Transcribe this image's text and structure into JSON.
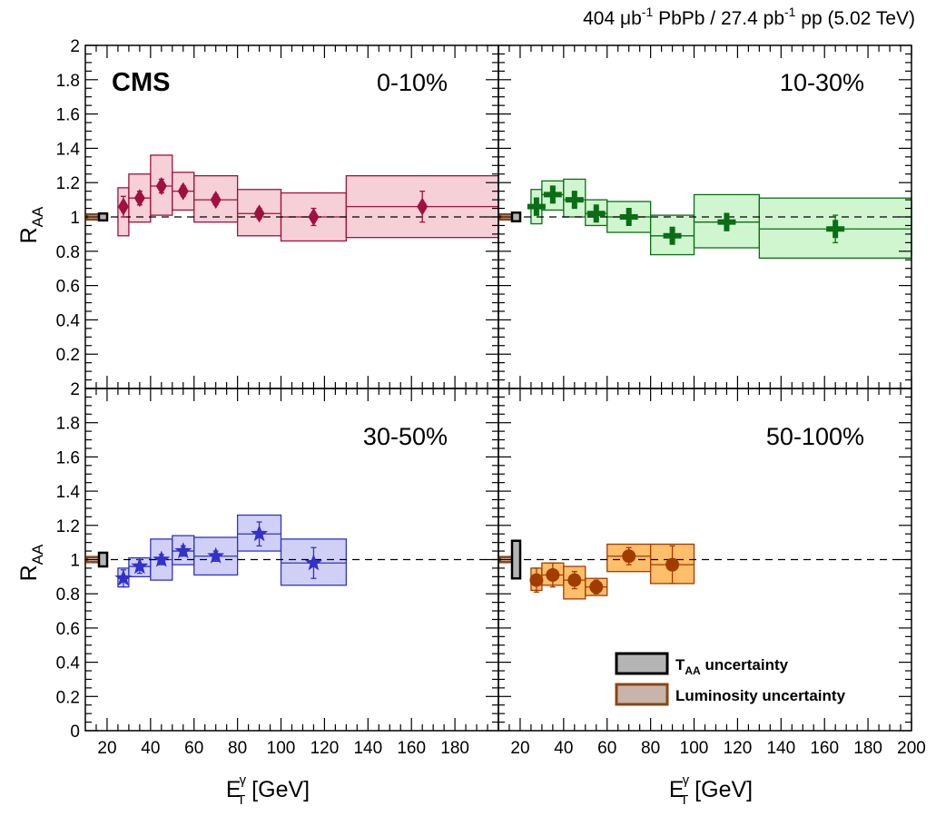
{
  "header": {
    "lumi_value": "404",
    "lumi_unit_prefix": "μb",
    "lumi_exp": "-1",
    "lumi_mid": " PbPb / 27.4 pb",
    "lumi_exp2": "-1",
    "lumi_tail": " pp (5.02 TeV)"
  },
  "experiment_label": "CMS",
  "axes": {
    "y_label_main": "R",
    "y_label_sub": "AA",
    "x_label_main": "E",
    "x_label_sub": "T",
    "x_label_sup": "γ",
    "x_label_unit": " [GeV]",
    "x_ticks": [
      "20",
      "40",
      "60",
      "80",
      "100",
      "120",
      "140",
      "160",
      "180",
      "200"
    ],
    "x_ticks_left": [
      "20",
      "40",
      "60",
      "80",
      "100",
      "120",
      "140",
      "160",
      "180"
    ],
    "y_ticks_top": [
      "0.2",
      "0.4",
      "0.6",
      "0.8",
      "1",
      "1.2",
      "1.4",
      "1.6",
      "1.8",
      "2"
    ],
    "y_ticks_bottom": [
      "0",
      "0.2",
      "0.4",
      "0.6",
      "0.8",
      "1",
      "1.2",
      "1.4",
      "1.6",
      "1.8",
      "2"
    ]
  },
  "legend": {
    "taa_main": "T",
    "taa_sub": "AA",
    "taa_tail": " uncertainty",
    "lumi_label": "Luminosity uncertainty",
    "taa_color": "#b4b4b4",
    "lumi_color": "#c8b4aa"
  },
  "chart_data": [
    {
      "type": "scatter",
      "centrality": "0-10%",
      "marker": "diamond",
      "color": "#a01040",
      "fill": "#f4c8d0",
      "xlim": [
        10,
        200
      ],
      "ylim": [
        0,
        2
      ],
      "reference_line": 1,
      "taa_band": [
        0.98,
        1.02
      ],
      "lumi_band": [
        0.985,
        1.015
      ],
      "points": [
        {
          "x": 27.5,
          "y": 1.06,
          "stat": 0.06,
          "bin": [
            25,
            30
          ],
          "syst": [
            0.89,
            1.17
          ]
        },
        {
          "x": 35,
          "y": 1.11,
          "stat": 0.04,
          "bin": [
            30,
            40
          ],
          "syst": [
            0.97,
            1.25
          ]
        },
        {
          "x": 45,
          "y": 1.18,
          "stat": 0.04,
          "bin": [
            40,
            50
          ],
          "syst": [
            1.01,
            1.36
          ]
        },
        {
          "x": 55,
          "y": 1.15,
          "stat": 0.03,
          "bin": [
            50,
            60
          ],
          "syst": [
            1.04,
            1.26
          ]
        },
        {
          "x": 70,
          "y": 1.1,
          "stat": 0.03,
          "bin": [
            60,
            80
          ],
          "syst": [
            0.97,
            1.24
          ]
        },
        {
          "x": 90,
          "y": 1.02,
          "stat": 0.03,
          "bin": [
            80,
            100
          ],
          "syst": [
            0.89,
            1.16
          ]
        },
        {
          "x": 115,
          "y": 1.0,
          "stat": 0.05,
          "bin": [
            100,
            130
          ],
          "syst": [
            0.86,
            1.14
          ]
        },
        {
          "x": 165,
          "y": 1.06,
          "stat": 0.09,
          "bin": [
            130,
            200
          ],
          "syst": [
            0.88,
            1.24
          ]
        }
      ]
    },
    {
      "type": "scatter",
      "centrality": "10-30%",
      "marker": "cross",
      "color": "#0a6e14",
      "fill": "#c8f4c8",
      "xlim": [
        10,
        200
      ],
      "ylim": [
        0,
        2
      ],
      "reference_line": 1,
      "taa_band": [
        0.975,
        1.025
      ],
      "lumi_band": [
        0.985,
        1.015
      ],
      "points": [
        {
          "x": 27.5,
          "y": 1.06,
          "stat": 0.05,
          "bin": [
            25,
            30
          ],
          "syst": [
            0.96,
            1.16
          ]
        },
        {
          "x": 35,
          "y": 1.13,
          "stat": 0.04,
          "bin": [
            30,
            40
          ],
          "syst": [
            1.04,
            1.21
          ]
        },
        {
          "x": 45,
          "y": 1.1,
          "stat": 0.04,
          "bin": [
            40,
            50
          ],
          "syst": [
            1.0,
            1.22
          ]
        },
        {
          "x": 55,
          "y": 1.02,
          "stat": 0.03,
          "bin": [
            50,
            60
          ],
          "syst": [
            0.95,
            1.1
          ]
        },
        {
          "x": 70,
          "y": 1.0,
          "stat": 0.03,
          "bin": [
            60,
            80
          ],
          "syst": [
            0.91,
            1.09
          ]
        },
        {
          "x": 90,
          "y": 0.89,
          "stat": 0.03,
          "bin": [
            80,
            100
          ],
          "syst": [
            0.78,
            1.01
          ]
        },
        {
          "x": 115,
          "y": 0.97,
          "stat": 0.05,
          "bin": [
            100,
            130
          ],
          "syst": [
            0.82,
            1.13
          ]
        },
        {
          "x": 165,
          "y": 0.93,
          "stat": 0.08,
          "bin": [
            130,
            200
          ],
          "syst": [
            0.76,
            1.11
          ]
        }
      ]
    },
    {
      "type": "scatter",
      "centrality": "30-50%",
      "marker": "star",
      "color": "#3232c8",
      "fill": "#c8c8f4",
      "xlim": [
        10,
        200
      ],
      "ylim": [
        0,
        2
      ],
      "reference_line": 1,
      "taa_band": [
        0.96,
        1.04
      ],
      "lumi_band": [
        0.985,
        1.015
      ],
      "points": [
        {
          "x": 27.5,
          "y": 0.89,
          "stat": 0.05,
          "bin": [
            25,
            30
          ],
          "syst": [
            0.84,
            0.95
          ]
        },
        {
          "x": 35,
          "y": 0.96,
          "stat": 0.04,
          "bin": [
            30,
            40
          ],
          "syst": [
            0.9,
            1.01
          ]
        },
        {
          "x": 45,
          "y": 1.0,
          "stat": 0.03,
          "bin": [
            40,
            50
          ],
          "syst": [
            0.88,
            1.12
          ]
        },
        {
          "x": 55,
          "y": 1.05,
          "stat": 0.03,
          "bin": [
            50,
            60
          ],
          "syst": [
            0.97,
            1.14
          ]
        },
        {
          "x": 70,
          "y": 1.02,
          "stat": 0.03,
          "bin": [
            60,
            80
          ],
          "syst": [
            0.91,
            1.13
          ]
        },
        {
          "x": 90,
          "y": 1.15,
          "stat": 0.07,
          "bin": [
            80,
            100
          ],
          "syst": [
            1.05,
            1.26
          ]
        },
        {
          "x": 115,
          "y": 0.98,
          "stat": 0.09,
          "bin": [
            100,
            130
          ],
          "syst": [
            0.85,
            1.12
          ]
        }
      ]
    },
    {
      "type": "scatter",
      "centrality": "50-100%",
      "marker": "circle",
      "color": "#a03c00",
      "fill": "#ffb450",
      "xlim": [
        10,
        200
      ],
      "ylim": [
        0,
        2
      ],
      "reference_line": 1,
      "taa_band": [
        0.89,
        1.11
      ],
      "lumi_band": [
        0.985,
        1.015
      ],
      "points": [
        {
          "x": 27.5,
          "y": 0.88,
          "stat": 0.07,
          "bin": [
            25,
            30
          ],
          "syst": [
            0.82,
            0.95
          ]
        },
        {
          "x": 35,
          "y": 0.91,
          "stat": 0.07,
          "bin": [
            30,
            40
          ],
          "syst": [
            0.85,
            0.98
          ]
        },
        {
          "x": 45,
          "y": 0.88,
          "stat": 0.05,
          "bin": [
            40,
            50
          ],
          "syst": [
            0.77,
            0.96
          ]
        },
        {
          "x": 55,
          "y": 0.84,
          "stat": 0.04,
          "bin": [
            50,
            60
          ],
          "syst": [
            0.79,
            0.89
          ]
        },
        {
          "x": 70,
          "y": 1.02,
          "stat": 0.05,
          "bin": [
            60,
            80
          ],
          "syst": [
            0.93,
            1.09
          ]
        },
        {
          "x": 90,
          "y": 0.97,
          "stat": 0.11,
          "bin": [
            80,
            100
          ],
          "syst": [
            0.86,
            1.09
          ]
        }
      ]
    }
  ]
}
